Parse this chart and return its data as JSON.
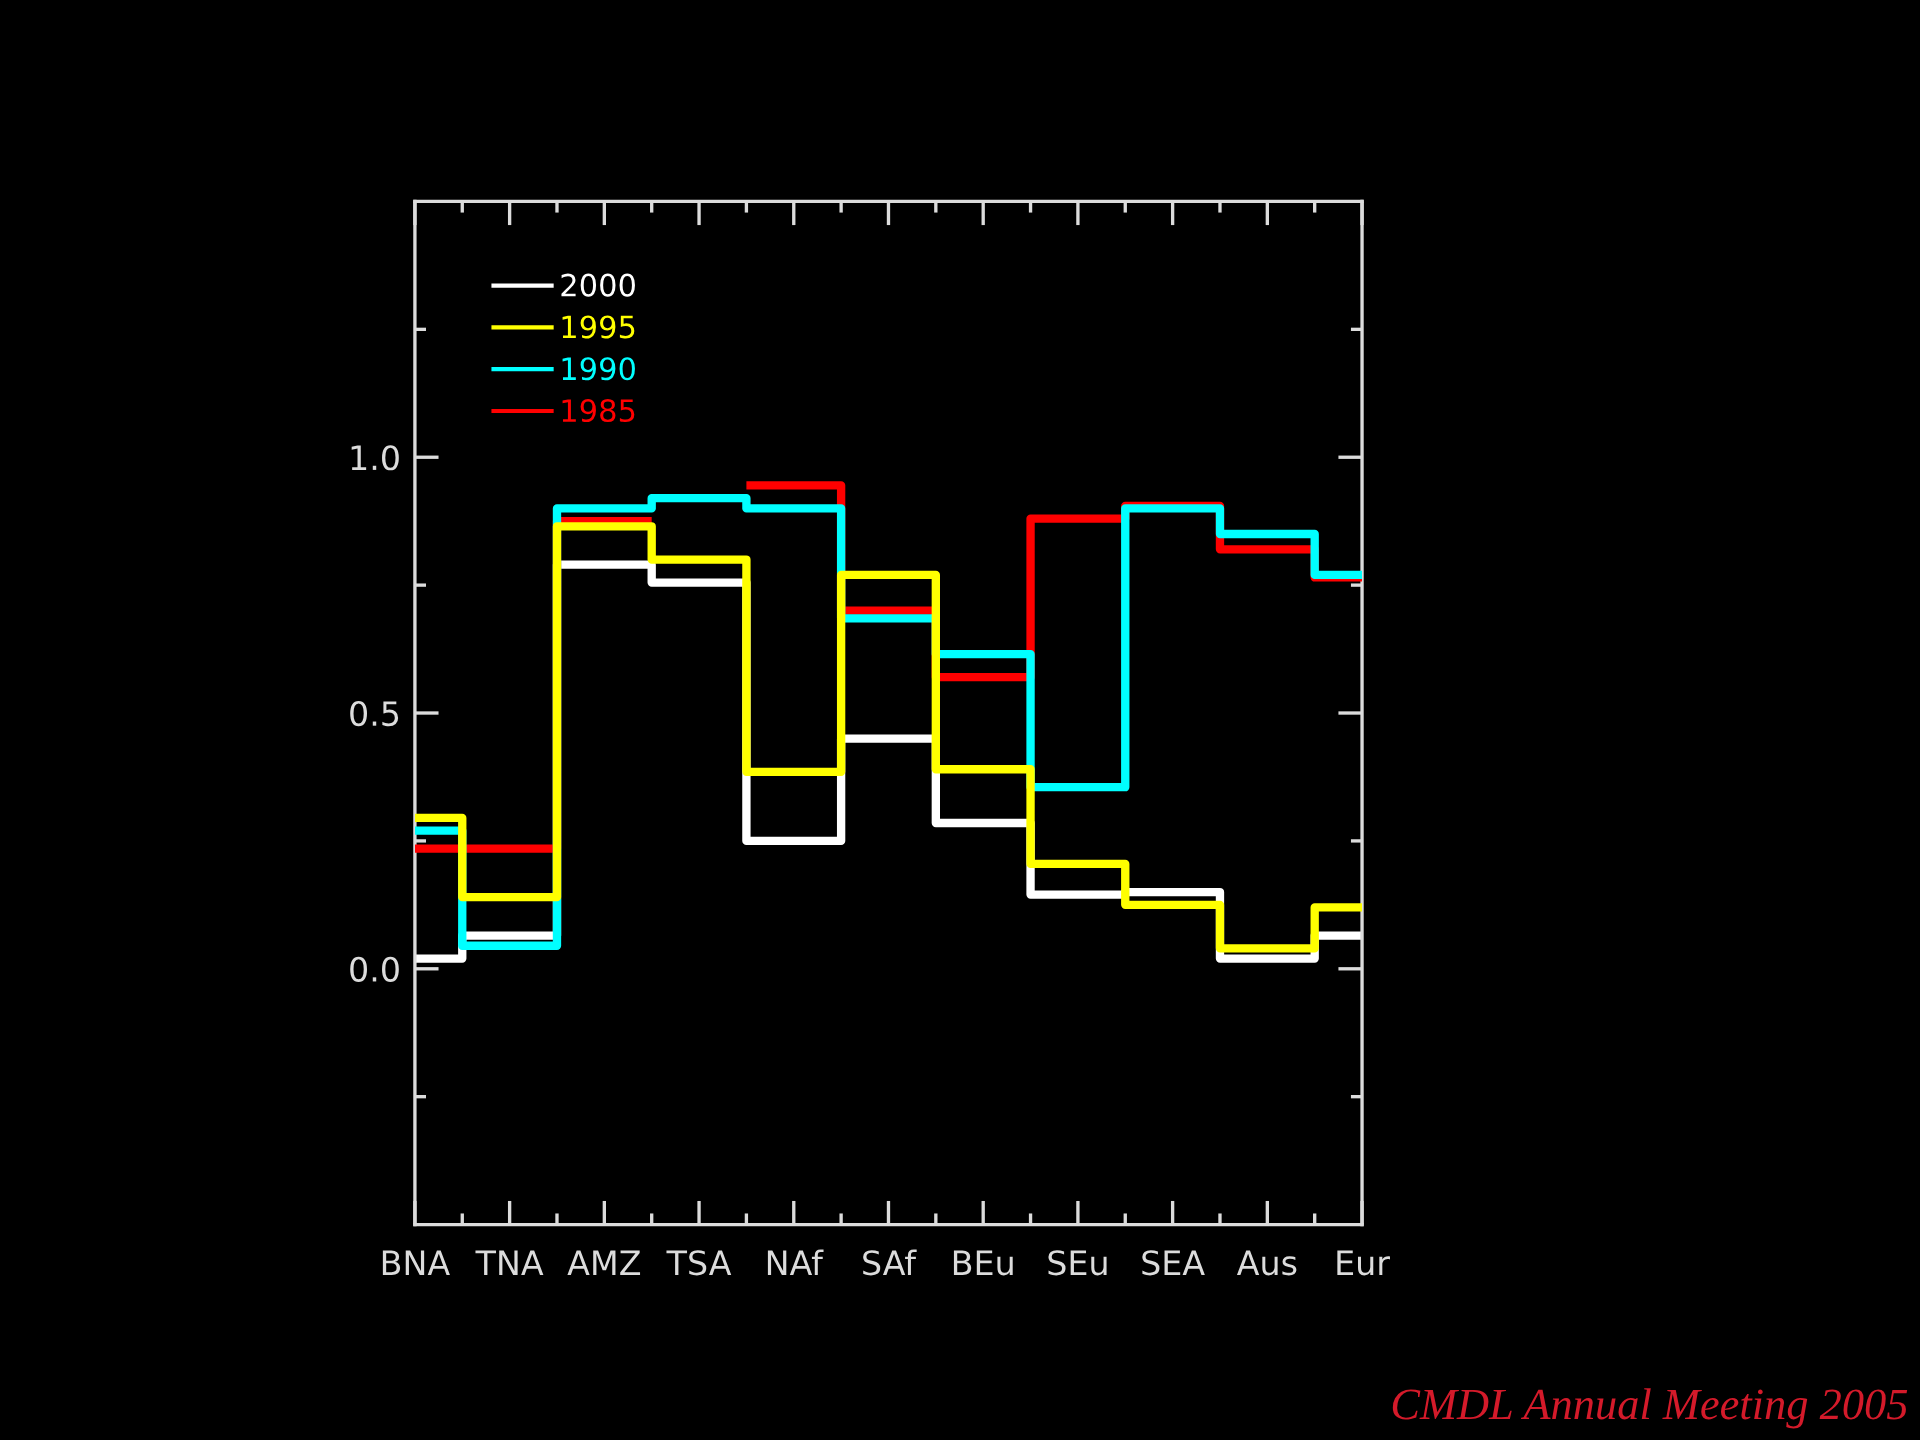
{
  "chart_data": {
    "type": "step",
    "categories": [
      "BNA",
      "TNA",
      "AMZ",
      "TSA",
      "NAf",
      "SAf",
      "BEu",
      "SEu",
      "SEA",
      "Aus",
      "Eur"
    ],
    "series": [
      {
        "name": "2000",
        "color": "#ffffff",
        "values": [
          0.02,
          0.065,
          0.79,
          0.755,
          0.25,
          0.45,
          0.285,
          0.145,
          0.15,
          0.02,
          0.065
        ]
      },
      {
        "name": "1995",
        "color": "#ffff00",
        "values": [
          0.295,
          0.14,
          0.865,
          0.8,
          0.385,
          0.77,
          0.39,
          0.205,
          0.125,
          0.04,
          0.12
        ]
      },
      {
        "name": "1990",
        "color": "#00ffff",
        "values": [
          0.27,
          0.045,
          0.9,
          0.92,
          0.9,
          0.685,
          0.615,
          0.355,
          0.9,
          0.85,
          0.77
        ]
      },
      {
        "name": "1985",
        "color": "#ff0000",
        "values": [
          0.235,
          0.235,
          0.875,
          null,
          0.945,
          0.7,
          0.57,
          0.88,
          0.905,
          0.82,
          0.765
        ]
      }
    ],
    "ylim": [
      -0.5,
      1.5
    ],
    "yticks": [
      {
        "value": -0.25,
        "label": null
      },
      {
        "value": 0,
        "label": "0.0"
      },
      {
        "value": 0.25,
        "label": null
      },
      {
        "value": 0.5,
        "label": "0.5"
      },
      {
        "value": 0.75,
        "label": null
      },
      {
        "value": 1,
        "label": "1.0"
      },
      {
        "value": 1.25,
        "label": null
      }
    ],
    "legend": "top left",
    "annotations": [
      "CMDL Annual Meeting 2005"
    ]
  }
}
